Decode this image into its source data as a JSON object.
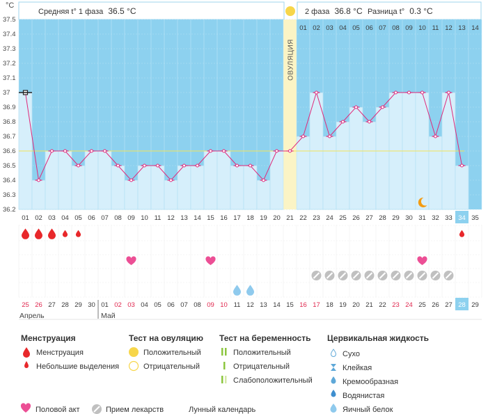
{
  "header": {
    "unit": "°C",
    "phase1_label": "Средняя t° 1 фаза",
    "phase1_value": "36.5 °C",
    "phase2_label": "2 фаза",
    "phase2_value": "36.8 °C",
    "diff_label": "Разница t°",
    "diff_value": "0.3 °C",
    "ovulation_label": "ОВУЛЯЦИЯ"
  },
  "chart_data": {
    "type": "line",
    "title": "",
    "ylabel": "°C",
    "ylim": [
      36.2,
      37.5
    ],
    "yticks": [
      36.2,
      36.3,
      36.4,
      36.5,
      36.6,
      36.7,
      36.8,
      36.9,
      37,
      37.1,
      37.2,
      37.3,
      37.4,
      37.5
    ],
    "coverline": 36.6,
    "ovulation_cycle_day": 21,
    "cycle_days": [
      "01",
      "02",
      "03",
      "04",
      "05",
      "06",
      "07",
      "08",
      "09",
      "10",
      "11",
      "12",
      "13",
      "14",
      "15",
      "16",
      "17",
      "18",
      "19",
      "20",
      "21",
      "22",
      "23",
      "24",
      "25",
      "26",
      "27",
      "28",
      "29",
      "30",
      "31",
      "32",
      "33",
      "34",
      "35"
    ],
    "highlighted_day": "34",
    "temperatures": [
      37.0,
      36.4,
      36.6,
      36.6,
      36.5,
      36.6,
      36.6,
      36.5,
      36.4,
      36.5,
      36.5,
      36.4,
      36.5,
      36.5,
      36.6,
      36.6,
      36.5,
      36.5,
      36.4,
      36.6,
      36.6,
      36.7,
      37.0,
      36.7,
      36.8,
      36.9,
      36.8,
      36.9,
      37.0,
      37.0,
      37.0,
      36.7,
      37.0,
      36.5,
      null
    ],
    "post_ovulation_day_numbers": [
      "01",
      "02",
      "03",
      "04",
      "05",
      "06",
      "07",
      "08",
      "09",
      "10",
      "11",
      "12",
      "13",
      "14"
    ],
    "calendar_dates": [
      "25",
      "26",
      "27",
      "28",
      "29",
      "30",
      "01",
      "02",
      "03",
      "04",
      "05",
      "06",
      "07",
      "08",
      "09",
      "10",
      "11",
      "12",
      "13",
      "14",
      "15",
      "16",
      "17",
      "18",
      "19",
      "20",
      "21",
      "22",
      "23",
      "24",
      "25",
      "26",
      "27",
      "28",
      "29"
    ],
    "red_dates_index": [
      0,
      1,
      7,
      8,
      14,
      15,
      21,
      22,
      28,
      29
    ],
    "highlighted_date": "28",
    "months": [
      "Апрель",
      "Май"
    ],
    "menstruation_days": [
      1,
      2,
      3
    ],
    "light_spotting_days": [
      4,
      5,
      34
    ],
    "intercourse_days": [
      9,
      15,
      31
    ],
    "medication_days": [
      23,
      24,
      25,
      26,
      27,
      28,
      29,
      30,
      31,
      32,
      33
    ],
    "egg_white_days": [
      17,
      18
    ],
    "lunar_day": 31
  },
  "legend": {
    "menstruation_title": "Менструация",
    "menstruation": "Менструация",
    "spotting": "Небольшие выделения",
    "ovulation_test_title": "Тест на овуляцию",
    "positive": "Положительный",
    "negative": "Отрицательный",
    "pregnancy_test_title": "Тест на беременность",
    "preg_positive": "Положительный",
    "preg_negative": "Отрицательный",
    "preg_weak": "Слабоположительный",
    "cervical_title": "Цервикальная жидкость",
    "dry": "Сухо",
    "sticky": "Клейкая",
    "creamy": "Кремообразная",
    "watery": "Водянистая",
    "egg_white": "Яичный белок",
    "intercourse": "Половой акт",
    "medication": "Прием лекарств",
    "lunar": "Лунный календарь"
  },
  "colors": {
    "sky": "#8dd1ef",
    "bar": "#d6effb",
    "bar_edge": "#9fd5ee",
    "line": "#e0297a",
    "ovulation": "#fbf4c5",
    "ovulation_dot": "#f7d64a",
    "red": "#e8282b",
    "pink": "#ec4f95",
    "med": "#c0c0c0",
    "drop_blue": "#8fcaed",
    "moon": "#f39c12",
    "axis_text": "#4a4a4a",
    "red_date": "#e0284f"
  }
}
